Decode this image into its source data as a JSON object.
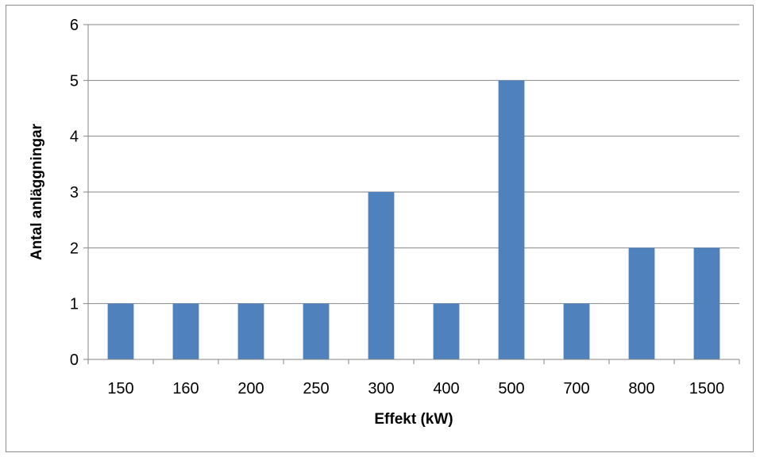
{
  "chart_data": {
    "type": "bar",
    "categories": [
      "150",
      "160",
      "200",
      "250",
      "300",
      "400",
      "500",
      "700",
      "800",
      "1500"
    ],
    "values": [
      1,
      1,
      1,
      1,
      3,
      1,
      5,
      1,
      2,
      2
    ],
    "title": "",
    "xlabel": "Effekt (kW)",
    "ylabel": "Antal anläggningar",
    "ylim": [
      0,
      6
    ],
    "yticks": [
      "0",
      "1",
      "2",
      "3",
      "4",
      "5",
      "6"
    ],
    "grid": true,
    "legend": "none",
    "bar_color": "#4F81BD",
    "grid_color": "#868686"
  }
}
